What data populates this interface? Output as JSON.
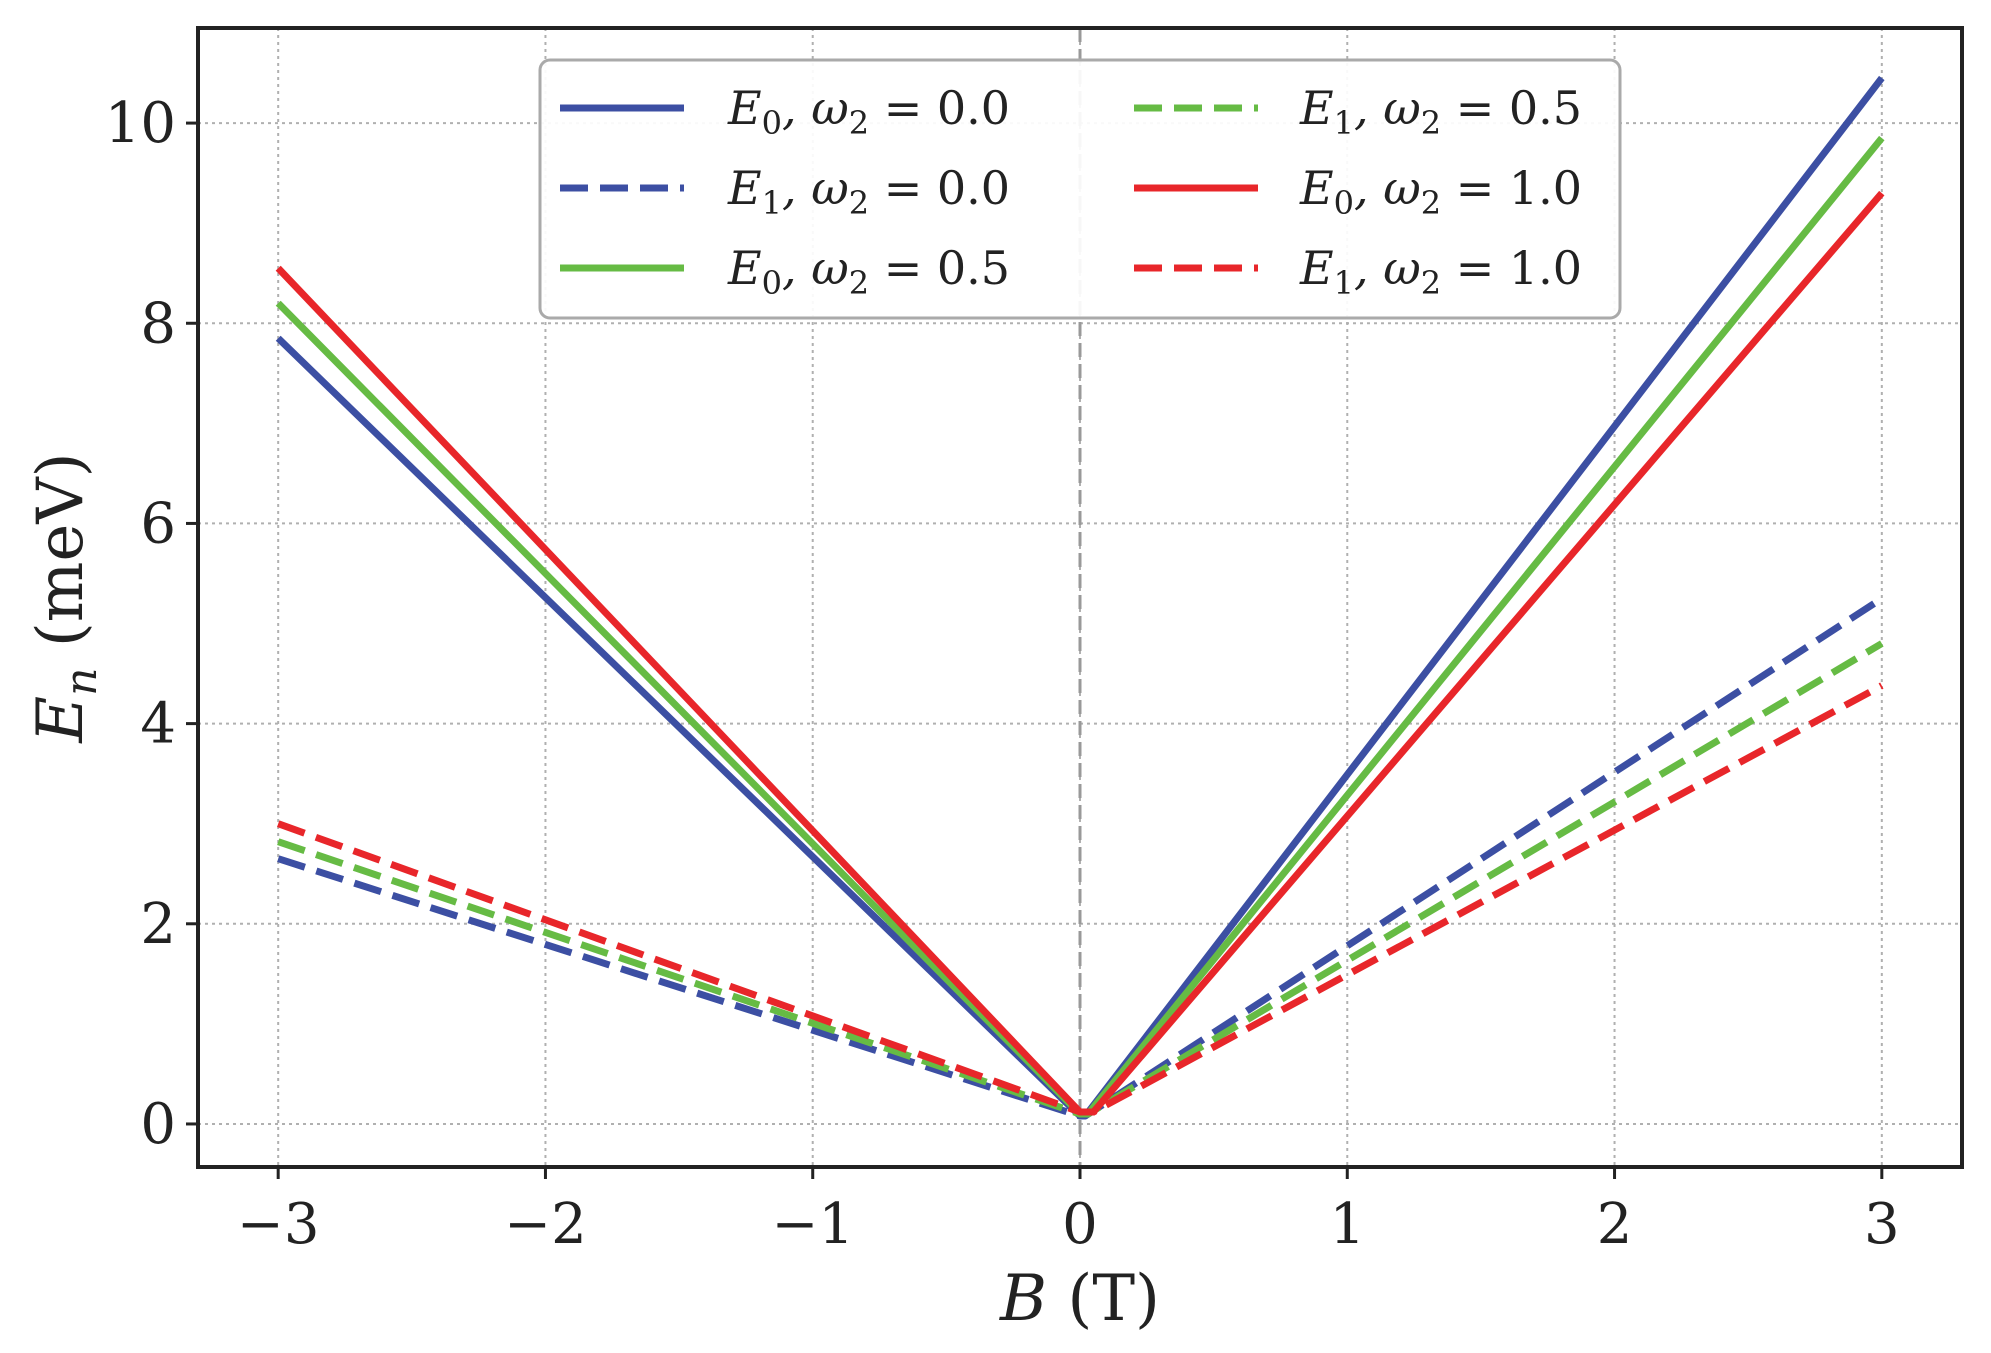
{
  "chart_data": {
    "type": "line",
    "xlabel": "B (T)",
    "ylabel": "E_n (meV)",
    "xlabel_parts": {
      "symbol": "B",
      "unit": " (T)"
    },
    "ylabel_parts": {
      "symbol": "E",
      "subscript": "n",
      "unit": " (meV)"
    },
    "xlim": [
      -3.3,
      3.3
    ],
    "ylim": [
      -0.43,
      10.95
    ],
    "xticks": [
      -3,
      -2,
      -1,
      0,
      1,
      2,
      3
    ],
    "xtick_labels": [
      "−3",
      "−2",
      "−1",
      "0",
      "1",
      "2",
      "3"
    ],
    "yticks": [
      0,
      2,
      4,
      6,
      8,
      10
    ],
    "ytick_labels": [
      "0",
      "2",
      "4",
      "6",
      "8",
      "10"
    ],
    "grid": true,
    "zero_line": "dashed vertical line at B = 0",
    "legend_position": "top-center",
    "series": [
      {
        "name": "E₀, ω₂ = 0.0",
        "label": {
          "E": "E",
          "sub": "0",
          "rest": ", ω",
          "wsub": "2",
          "val": " = 0.0"
        },
        "color": "#3c4fa3",
        "style": "solid",
        "x": [
          -3,
          0,
          0.02,
          3
        ],
        "y": [
          7.85,
          0.08,
          0.08,
          10.45
        ]
      },
      {
        "name": "E₁, ω₂ = 0.0",
        "label": {
          "E": "E",
          "sub": "1",
          "rest": ", ω",
          "wsub": "2",
          "val": " = 0.0"
        },
        "color": "#3c4fa3",
        "style": "dashed",
        "x": [
          -3,
          0,
          0.02,
          3
        ],
        "y": [
          2.65,
          0.08,
          0.08,
          5.25
        ]
      },
      {
        "name": "E₀, ω₂ = 0.5",
        "label": {
          "E": "E",
          "sub": "0",
          "rest": ", ω",
          "wsub": "2",
          "val": " = 0.5"
        },
        "color": "#66bb44",
        "style": "solid",
        "x": [
          -3,
          0,
          0.03,
          3
        ],
        "y": [
          8.2,
          0.1,
          0.1,
          9.85
        ]
      },
      {
        "name": "E₁, ω₂ = 0.5",
        "label": {
          "E": "E",
          "sub": "1",
          "rest": ", ω",
          "wsub": "2",
          "val": " = 0.5"
        },
        "color": "#66bb44",
        "style": "dashed",
        "x": [
          -3,
          0,
          0.03,
          3
        ],
        "y": [
          2.82,
          0.1,
          0.1,
          4.8
        ]
      },
      {
        "name": "E₀, ω₂ = 1.0",
        "label": {
          "E": "E",
          "sub": "0",
          "rest": ", ω",
          "wsub": "2",
          "val": " = 1.0"
        },
        "color": "#e8262a",
        "style": "solid",
        "x": [
          -3,
          0,
          0.05,
          3
        ],
        "y": [
          8.55,
          0.12,
          0.12,
          9.3
        ]
      },
      {
        "name": "E₁, ω₂ = 1.0",
        "label": {
          "E": "E",
          "sub": "1",
          "rest": ", ω",
          "wsub": "2",
          "val": " = 1.0"
        },
        "color": "#e8262a",
        "style": "dashed",
        "x": [
          -3,
          0,
          0.05,
          3
        ],
        "y": [
          3.0,
          0.12,
          0.12,
          4.38
        ]
      }
    ],
    "legend_order": [
      0,
      1,
      2,
      3,
      4,
      5
    ]
  }
}
